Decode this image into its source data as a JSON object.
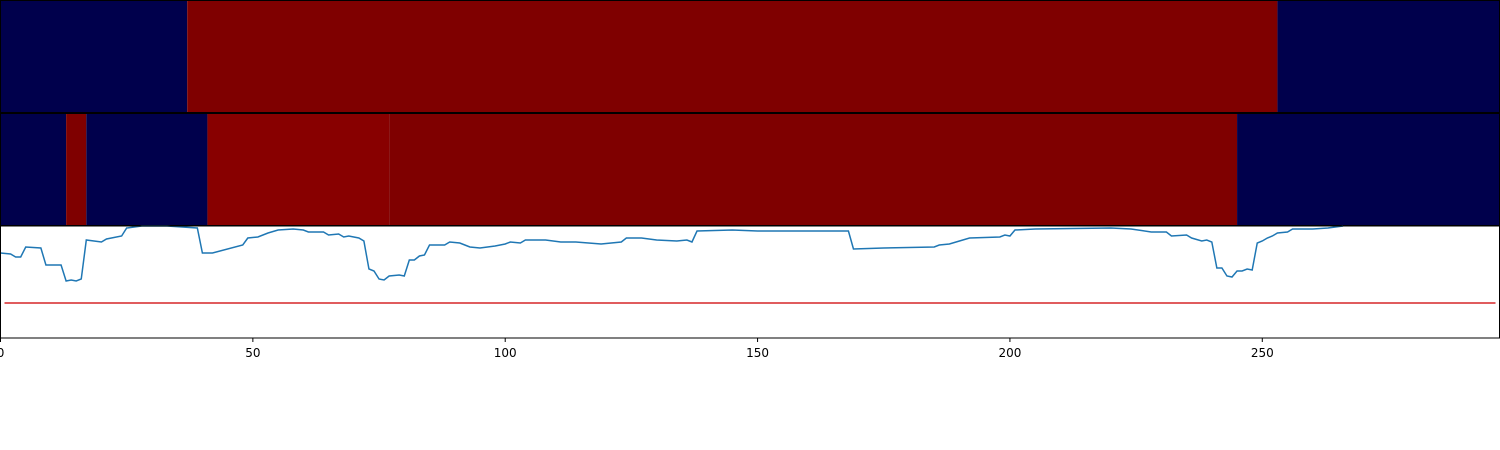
{
  "chart_data": {
    "type": "strips_and_line",
    "xlim": [
      0,
      297
    ],
    "xticks": [
      0,
      50,
      100,
      150,
      200,
      250
    ],
    "strips": [
      {
        "segments": [
          {
            "start": 0,
            "end": 37,
            "color": "#00004c"
          },
          {
            "start": 37,
            "end": 253,
            "color": "#7f0000"
          },
          {
            "start": 253,
            "end": 297,
            "color": "#00004c"
          }
        ]
      },
      {
        "segments": [
          {
            "start": 0,
            "end": 13,
            "color": "#00004c"
          },
          {
            "start": 13,
            "end": 17,
            "color": "#7f0000"
          },
          {
            "start": 17,
            "end": 41,
            "color": "#00004c"
          },
          {
            "start": 41,
            "end": 77,
            "color": "#880000"
          },
          {
            "start": 77,
            "end": 245,
            "color": "#7f0000"
          },
          {
            "start": 245,
            "end": 297,
            "color": "#00004c"
          }
        ]
      }
    ],
    "ylim": [
      0,
      112
    ],
    "line": {
      "color": "#1f77b4",
      "x": [
        0,
        2,
        3,
        4,
        5,
        8,
        9,
        12,
        13,
        14,
        15,
        16,
        17,
        20,
        21,
        24,
        25,
        28,
        33,
        39,
        40,
        42,
        48,
        49,
        51,
        53,
        55,
        58,
        60,
        61,
        64,
        65,
        67,
        68,
        69,
        71,
        72,
        73,
        74,
        75,
        76,
        77,
        79,
        80,
        81,
        82,
        83,
        84,
        85,
        88,
        89,
        91,
        92,
        93,
        95,
        98,
        100,
        101,
        103,
        104,
        108,
        111,
        114,
        119,
        123,
        124,
        127,
        130,
        134,
        136,
        137,
        138,
        145,
        150,
        165,
        168,
        169,
        175,
        185,
        186,
        188,
        190,
        192,
        198,
        199,
        200,
        201,
        205,
        220,
        224,
        228,
        231,
        232,
        235,
        236,
        238,
        239,
        240,
        241,
        242,
        243,
        244,
        245,
        246,
        247,
        248,
        249,
        250,
        251,
        252,
        253,
        255,
        256,
        260,
        263,
        266
      ],
      "values": [
        85,
        84,
        81,
        81,
        91,
        90,
        73,
        73,
        57,
        58,
        57,
        59,
        98,
        96,
        99,
        102,
        110,
        112,
        112,
        110,
        85,
        85,
        93,
        100,
        101,
        105,
        108,
        109,
        108,
        106,
        106,
        103,
        104,
        101,
        102,
        100,
        97,
        69,
        67,
        59,
        58,
        62,
        63,
        62,
        78,
        78,
        82,
        83,
        93,
        93,
        96,
        95,
        93,
        91,
        90,
        92,
        94,
        96,
        95,
        98,
        98,
        96,
        96,
        94,
        96,
        100,
        100,
        98,
        97,
        98,
        96,
        107,
        108,
        107,
        107,
        107,
        89,
        90,
        91,
        93,
        94,
        97,
        100,
        101,
        103,
        102,
        108,
        109,
        110,
        109,
        106,
        106,
        102,
        103,
        100,
        97,
        98,
        96,
        70,
        70,
        62,
        61,
        67,
        67,
        69,
        68,
        95,
        97,
        100,
        102,
        105,
        106,
        109,
        109,
        110,
        112
      ]
    },
    "threshold": {
      "value": 35,
      "color": "#d62728"
    }
  }
}
